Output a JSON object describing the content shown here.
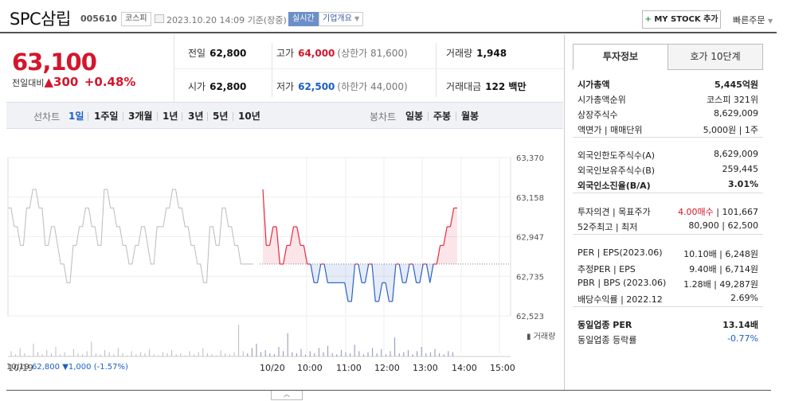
{
  "header": {
    "name": "SPC삼립",
    "code": "005610",
    "market": "코스피",
    "datetime": "2023.10.20 14:09 기준(장중)",
    "realtime": "실시간",
    "company_info": "기업개요",
    "mystock_plus": "+",
    "mystock": "MY STOCK 추가",
    "quick_order": "빠른주문"
  },
  "price": {
    "current": "63,100",
    "change_label": "전일대비",
    "change_arrow": "▲",
    "change_value": "300",
    "change_pct": "+0.48%"
  },
  "stats": {
    "prev_close_label": "전일",
    "prev_close": "62,800",
    "high_label": "고가",
    "high": "64,000",
    "upper_limit": "(상한가 81,600)",
    "volume_label": "거래량",
    "volume": "1,948",
    "open_label": "시가",
    "open": "62,800",
    "low_label": "저가",
    "low": "62,500",
    "lower_limit": "(하한가 44,000)",
    "amount_label": "거래대금",
    "amount": "122 백만"
  },
  "chart_tabs": {
    "line_label": "선차트",
    "line": [
      "1일",
      "1주일",
      "3개월",
      "1년",
      "3년",
      "5년",
      "10년"
    ],
    "active": "1일",
    "candle_label": "봉차트",
    "candle": [
      "일봉",
      "주봉",
      "월봉"
    ]
  },
  "chart_footer": {
    "vol_label": "거래량",
    "prev_date": "10/19",
    "prev_close": "62,800",
    "prev_change": "▼1,000 (-1.57%)"
  },
  "sidebar": {
    "tabs": [
      "투자정보",
      "호가 10단계"
    ],
    "group1": [
      {
        "k": "시가총액",
        "v": "5,445억원",
        "bold": true
      },
      {
        "k": "시가총액순위",
        "v": "코스피 321위"
      },
      {
        "k": "상장주식수",
        "v": "8,629,009"
      },
      {
        "k": "액면가 | 매매단위",
        "v": "5,000원 | 1주"
      }
    ],
    "group2": [
      {
        "k": "외국인한도주식수(A)",
        "v": "8,629,009"
      },
      {
        "k": "외국인보유주식수(B)",
        "v": "259,445"
      },
      {
        "k": "외국인소진율(B/A)",
        "v": "3.01%",
        "bold": true
      }
    ],
    "group3_row1": {
      "k": "투자의견 | 목표주가",
      "v1": "4.00매수",
      "v2": "| 101,667"
    },
    "group3_row2": {
      "k": "52주최고 | 최저",
      "v": "80,900 | 62,500"
    },
    "group4": [
      {
        "k": "PER | EPS(2023.06)",
        "v": "10.10배 | 6,248원"
      },
      {
        "k": "추정PER | EPS",
        "v": "9.40배 | 6,714원"
      },
      {
        "k": "PBR | BPS (2023.06)",
        "v": "1.28배 | 49,287원"
      },
      {
        "k": "배당수익률 | 2022.12",
        "v": "2.69%"
      }
    ],
    "group5_per": {
      "k": "동일업종 PER",
      "v": "13.14배"
    },
    "group5_rate": {
      "k": "동일업종 등락률",
      "v": "-0.77%"
    }
  },
  "chart_data": {
    "type": "line",
    "ylim": [
      62523,
      63370
    ],
    "y_ticks": [
      "63,370",
      "63,158",
      "62,947",
      "62,735",
      "62,523"
    ],
    "x_ticks": [
      "10/19",
      "10/20",
      "10:00",
      "11:00",
      "12:00",
      "13:00",
      "14:00",
      "15:00"
    ],
    "reference": 62800,
    "prev_day_prices": [
      63100,
      63100,
      63000,
      63000,
      62900,
      62900,
      63100,
      63100,
      63200,
      63200,
      63100,
      63100,
      62900,
      62900,
      63000,
      63000,
      62900,
      62800,
      62800,
      62700,
      62700,
      62900,
      62900,
      63000,
      63000,
      63100,
      63100,
      63000,
      63000,
      62900,
      62900,
      63200,
      63200,
      63100,
      63100,
      63000,
      63000,
      62900,
      62900,
      62800,
      62800,
      62900,
      62900,
      63000,
      63000,
      62900,
      62800,
      62800,
      63000,
      63000,
      63000,
      63100,
      63100,
      63200,
      63200,
      63100,
      63100,
      63000,
      63000,
      62900,
      62900,
      62800,
      62800,
      62700,
      62700,
      63000,
      63000,
      62900,
      62900,
      63100,
      63100,
      63000,
      63000,
      62900,
      62900,
      62800,
      62800,
      62800,
      62800,
      62800
    ],
    "today_prices": [
      63200,
      62900,
      62900,
      63000,
      63000,
      62800,
      62800,
      62900,
      62900,
      63000,
      63000,
      62900,
      62900,
      62800,
      62800,
      62700,
      62700,
      62800,
      62800,
      62700,
      62700,
      62700,
      62700,
      62700,
      62700,
      62600,
      62600,
      62800,
      62800,
      62700,
      62700,
      62800,
      62800,
      62600,
      62600,
      62700,
      62700,
      62600,
      62600,
      62800,
      62800,
      62700,
      62700,
      62800,
      62800,
      62700,
      62700,
      62800,
      62800,
      62700,
      62800,
      62800,
      62900,
      62900,
      63000,
      63000,
      63100,
      63100
    ],
    "volume": [
      5,
      2,
      8,
      3,
      1,
      12,
      4,
      2,
      6,
      3,
      9,
      2,
      4,
      1,
      7,
      3,
      2,
      5,
      14,
      3,
      2,
      6,
      4,
      2,
      8,
      3,
      1,
      5,
      2,
      4,
      3,
      7,
      2,
      1,
      4,
      3,
      6,
      2,
      3,
      1,
      5,
      2,
      4,
      8,
      3,
      2,
      1,
      6,
      3,
      2,
      4,
      30,
      5,
      3,
      8,
      12,
      4,
      6,
      3,
      2,
      9,
      5,
      22,
      4,
      3,
      7,
      2,
      5,
      3,
      8,
      4,
      10,
      3,
      2,
      6,
      4,
      3,
      11,
      5,
      2,
      4,
      8,
      3,
      7,
      2,
      5,
      18,
      3,
      4,
      6,
      2,
      5,
      9,
      3,
      4,
      7,
      3,
      2,
      5,
      4
    ]
  }
}
